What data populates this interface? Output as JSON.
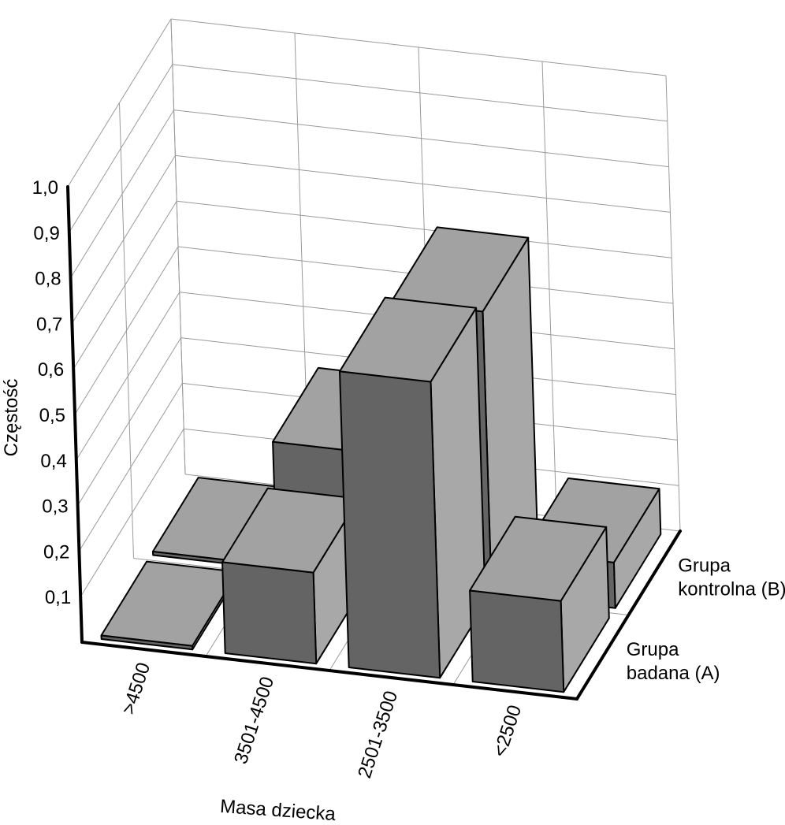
{
  "chart_data": {
    "type": "bar",
    "subtype": "3d-bar",
    "title": "",
    "ylabel": "Częstość",
    "xlabel": "Masa dziecka",
    "ylim": [
      0,
      1.0
    ],
    "yticks": [
      "0,1",
      "0,2",
      "0,3",
      "0,4",
      "0,5",
      "0,6",
      "0,7",
      "0,8",
      "0,9",
      "1,0"
    ],
    "categories": [
      ">4500",
      "3501-4500",
      "2501-3500",
      "<2500"
    ],
    "series": [
      {
        "name": "Grupa badana (A)",
        "values": [
          0.0,
          0.2,
          0.65,
          0.2
        ]
      },
      {
        "name": "Grupa kontrolna (B)",
        "values": [
          0.0,
          0.28,
          0.62,
          0.1
        ]
      }
    ],
    "grid": true,
    "colors": {
      "top": "#a2a2a2",
      "front": "#646464",
      "side": "#a8a8a8",
      "grid": "#9a9a9a"
    }
  }
}
